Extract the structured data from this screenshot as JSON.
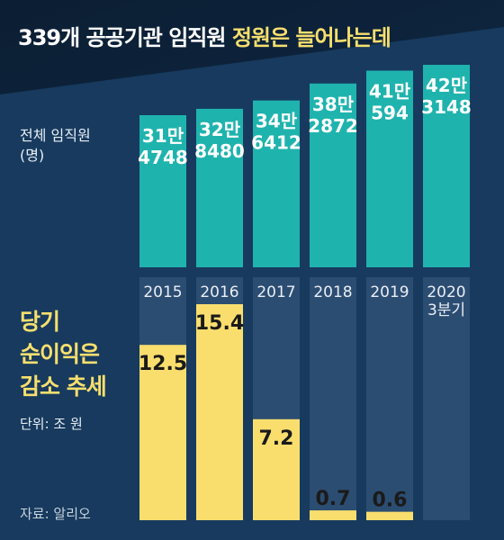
{
  "title": {
    "plain": "339개 공공기관 임직원 ",
    "highlight": "정원은 늘어나는데"
  },
  "employees_label": {
    "line1": "전체 임직원",
    "line2": "(명)"
  },
  "profit_label": {
    "line1": "당기",
    "line2": "순이익은",
    "line3": "감소 추세"
  },
  "unit_label": "단위: 조 원",
  "source": "자료: 알리오",
  "colors": {
    "background": "#173a5e",
    "banner": "#0d2238",
    "employees_bar": "#1fb3ae",
    "profit_bar": "#f9de6e",
    "highlight_text": "#f7df6e",
    "column_shade": "#2c4d72"
  },
  "chart_data": [
    {
      "type": "bar",
      "categories": [
        "2015",
        "2016",
        "2017",
        "2018",
        "2019",
        "2020\n3분기"
      ],
      "series": [
        {
          "values": [
            314748,
            328480,
            346412,
            382872,
            410594,
            423148
          ],
          "labels": [
            [
              "31만",
              "4748"
            ],
            [
              "32만",
              "8480"
            ],
            [
              "34만",
              "6412"
            ],
            [
              "38만",
              "2872"
            ],
            [
              "41만",
              "594"
            ],
            [
              "42만",
              "3148"
            ]
          ]
        }
      ],
      "title": "",
      "xlabel": "",
      "ylabel": "전체 임직원 (명)",
      "ylim": [
        0,
        423148
      ]
    },
    {
      "type": "bar",
      "categories": [
        "2015",
        "2016",
        "2017",
        "2018",
        "2019"
      ],
      "series": [
        {
          "values": [
            12.5,
            15.4,
            7.2,
            0.7,
            0.6
          ],
          "labels": [
            "12.5",
            "15.4",
            "7.2",
            "0.7",
            "0.6"
          ]
        }
      ],
      "title": "",
      "xlabel": "",
      "ylabel": "단위: 조 원",
      "ylim": [
        0,
        15.4
      ]
    }
  ]
}
